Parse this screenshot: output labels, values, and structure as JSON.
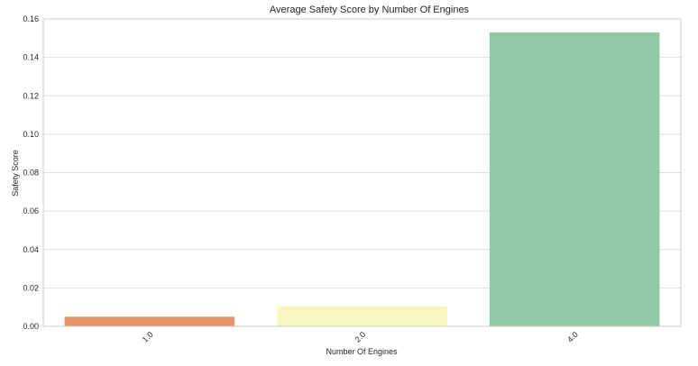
{
  "chart_data": {
    "type": "bar",
    "title": "Average Safety Score by Number Of Engines",
    "xlabel": "Number Of Engines",
    "ylabel": "Safety Score",
    "categories": [
      "1.0",
      "2.0",
      "4.0"
    ],
    "values": [
      0.005,
      0.0105,
      0.153
    ],
    "ylim": [
      0,
      0.16
    ],
    "yticks": [
      "0.00",
      "0.02",
      "0.04",
      "0.06",
      "0.08",
      "0.10",
      "0.12",
      "0.14",
      "0.16"
    ],
    "bar_colors": [
      "#e8956a",
      "#f8f7c0",
      "#90c7a5"
    ],
    "grid": true,
    "tick_rotation": "x labels rotated 45 degrees"
  }
}
